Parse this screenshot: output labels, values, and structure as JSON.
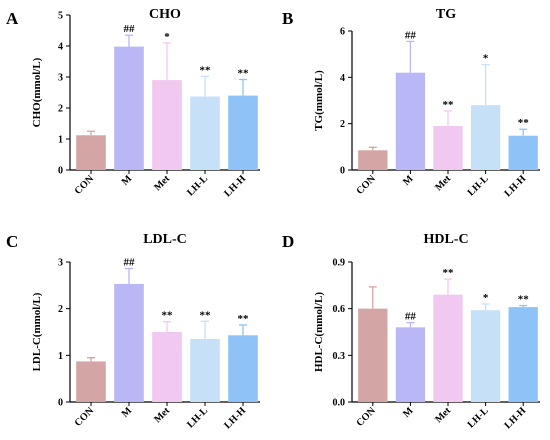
{
  "chart_data": [
    {
      "type": "bar",
      "panel": "A",
      "title": "CHO",
      "ylabel": "CHO(mmol/L)",
      "xlabel": "",
      "ylim": [
        0,
        5
      ],
      "yticks": [
        0,
        1,
        2,
        3,
        4,
        5
      ],
      "grid": false,
      "categories": [
        "CON",
        "M",
        "Met",
        "LH-L",
        "LH-H"
      ],
      "values": [
        1.12,
        3.98,
        2.9,
        2.37,
        2.4
      ],
      "errors": [
        0.13,
        0.37,
        1.2,
        0.65,
        0.52
      ],
      "significance": [
        "",
        "##",
        "*",
        "**",
        "**"
      ],
      "colors": [
        "#d4a5a5",
        "#b9b7f5",
        "#f0c8f0",
        "#c6e0f8",
        "#8fc3f7"
      ]
    },
    {
      "type": "bar",
      "panel": "B",
      "title": "TG",
      "ylabel": "TG(mmol/L)",
      "xlabel": "",
      "ylim": [
        0,
        6
      ],
      "yticks": [
        0,
        2,
        4,
        6
      ],
      "grid": false,
      "categories": [
        "CON",
        "M",
        "Met",
        "LH-L",
        "LH-H"
      ],
      "values": [
        0.85,
        4.2,
        1.9,
        2.8,
        1.48
      ],
      "errors": [
        0.13,
        1.35,
        0.65,
        1.75,
        0.28
      ],
      "significance": [
        "",
        "##",
        "**",
        "*",
        "**"
      ],
      "colors": [
        "#d4a5a5",
        "#b9b7f5",
        "#f0c8f0",
        "#c6e0f8",
        "#8fc3f7"
      ]
    },
    {
      "type": "bar",
      "panel": "C",
      "title": "LDL-C",
      "ylabel": "LDL-C(mmol/L)",
      "xlabel": "",
      "ylim": [
        0,
        3
      ],
      "yticks": [
        0,
        1,
        2,
        3
      ],
      "grid": false,
      "categories": [
        "CON",
        "M",
        "Met",
        "LH-L",
        "LH-H"
      ],
      "values": [
        0.87,
        2.53,
        1.5,
        1.35,
        1.43
      ],
      "errors": [
        0.08,
        0.33,
        0.22,
        0.38,
        0.22
      ],
      "significance": [
        "",
        "##",
        "**",
        "**",
        "**"
      ],
      "colors": [
        "#d4a5a5",
        "#b9b7f5",
        "#f0c8f0",
        "#c6e0f8",
        "#8fc3f7"
      ]
    },
    {
      "type": "bar",
      "panel": "D",
      "title": "HDL-C",
      "ylabel": "HDL-C(mmol/L)",
      "xlabel": "",
      "ylim": [
        0,
        0.9
      ],
      "yticks": [
        "0.0",
        "0.3",
        "0.6",
        "0.9"
      ],
      "grid": false,
      "categories": [
        "CON",
        "M",
        "Met",
        "LH-L",
        "LH-H"
      ],
      "values": [
        0.6,
        0.48,
        0.69,
        0.59,
        0.61
      ],
      "errors": [
        0.14,
        0.03,
        0.1,
        0.04,
        0.01
      ],
      "significance": [
        "",
        "##",
        "**",
        "*",
        "**"
      ],
      "colors": [
        "#d4a5a5",
        "#b9b7f5",
        "#f0c8f0",
        "#c6e0f8",
        "#8fc3f7"
      ]
    }
  ]
}
